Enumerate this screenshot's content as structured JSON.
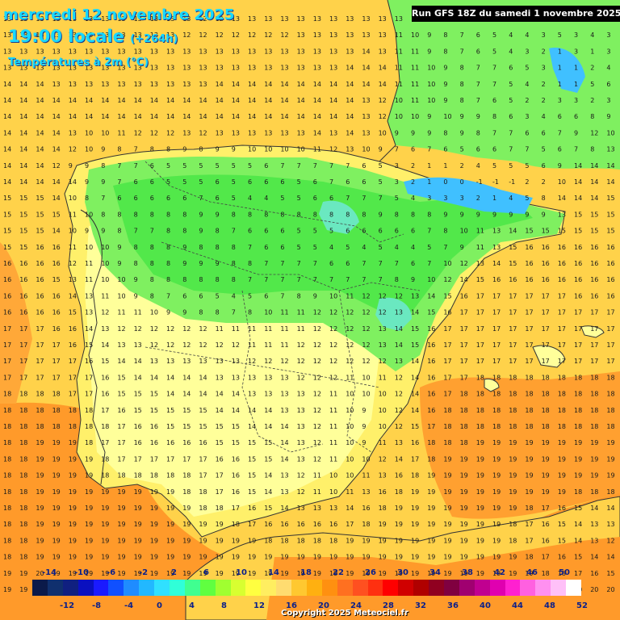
{
  "header": {
    "date_line": "mercredi 12 novembre 2025",
    "time_line": "19:00 locale",
    "lead_time": "(+264h)",
    "variable": "Températures à 2m (°C)",
    "run_info": "Run GFS 18Z du samedi 1 novembre 2025"
  },
  "legend": {
    "top_labels": [
      "-14",
      "-10",
      "-6",
      "-2",
      "2",
      "6",
      "10",
      "14",
      "18",
      "22",
      "26",
      "30",
      "34",
      "38",
      "42",
      "46",
      "50"
    ],
    "bottom_labels": [
      "-12",
      "-8",
      "-4",
      "0",
      "4",
      "8",
      "12",
      "16",
      "20",
      "24",
      "28",
      "32",
      "36",
      "40",
      "44",
      "48",
      "52"
    ],
    "colors": [
      "#0b1a4a",
      "#10306e",
      "#102080",
      "#0a10c0",
      "#1a1aff",
      "#1050ff",
      "#1f8cff",
      "#22b8ff",
      "#30e0ff",
      "#30ffd8",
      "#40ff90",
      "#60ff40",
      "#a0ff30",
      "#d8ff30",
      "#ffff40",
      "#ffee60",
      "#ffdc70",
      "#ffc830",
      "#ffb010",
      "#ff9010",
      "#ff7020",
      "#ff5020",
      "#ff3010",
      "#ff0000",
      "#d00000",
      "#b00000",
      "#900020",
      "#800040",
      "#a00070",
      "#c00090",
      "#e000b0",
      "#ff20d0",
      "#ff60e0",
      "#ff90f0",
      "#ffc0f8",
      "#ffffff"
    ]
  },
  "copyright": "Copyright 2025 Meteociel.fr",
  "map": {
    "palette": {
      "sea": "#ffd24a",
      "warm": "#ff9a2a",
      "land_yellow": "#fff06a",
      "pale": "#ffff9a",
      "green": "#7ff060",
      "green_dark": "#52e84a",
      "cold": "#6ae8c0",
      "blue": "#40c0ff",
      "border": "#333333"
    }
  },
  "grid_values": [
    "13 13 13 13 13 13 13 13 13 13 13 13 12 12 13 13 13 13 13 13 13 13 13 13 13 13 13 13 13 13 13 13 13 13 13 13 13 13",
    "13 13 13 13 13 13 13 13 13 13 13 12 12 12 12 12 12 12 13 13 13 13 13 13 11 10 9 8 7 6 5 4 4 3 5 3 4 3",
    "13 13 13 13 13 13 13 13 13 13 13 13 13 13 13 13 13 13 13 13 13 13 14 13 11 11 9 8 7 6 5 4 3 2 1 3 1 3",
    "13 13 13 13 13 13 13 13 13 13 13 13 13 13 13 13 13 13 13 13 13 14 14 14 11 11 10 9 8 7 7 6 5 3 1 1 2 4",
    "14 14 14 13 13 13 13 13 13 13 13 13 13 14 14 14 14 14 14 14 14 14 14 14 11 11 10 9 8 7 7 5 4 2 1 1 5 6",
    "14 14 14 14 14 14 14 14 14 14 14 14 14 14 14 14 14 14 14 14 14 14 13 12 10 11 10 9 8 7 6 5 2 2 3 3 2 3",
    "14 14 14 14 14 14 14 14 14 14 14 14 14 14 14 14 14 14 14 14 14 14 13 12 10 10 9 10 9 9 8 6 3 4 6 6 8 9",
    "14 14 14 14 13 10 10 11 12 12 12 13 12 13 13 13 13 13 13 14 13 14 13 10 9 9 9 8 9 8 7 7 6 6 7 9 12 10",
    "14 14 14 14 12 10 9 8 7 8 8 9 8 9 9 10 10 10 10 11 12 13 10 9 7 6 7 6 5 6 6 7 7 5 6 7 8 13",
    "14 14 14 12 9 9 8 7 7 6 5 5 5 5 5 5 6 7 7 7 7 7 6 5 3 2 1 1 2 4 5 5 5 6 9 14 14 14",
    "14 14 14 14 14 9 9 7 6 6 5 5 5 6 5 6 6 6 5 6 7 6 6 5 3 2 1 0 0 -1 -1 -1 2 2 10 14 14 14",
    "15 15 15 14 10 8 7 6 6 6 6 6 7 6 5 4 4 5 5 6 6 7 7 7 5 4 3 3 3 2 1 4 5 8 14 14 14 15",
    "15 15 15 15 11 10 8 8 8 8 8 8 9 9 8 8 8 8 8 8 8 8 8 9 8 8 8 9 9 9 9 9 9 9 13 15 15 15",
    "15 15 15 14 10 9 9 8 7 7 8 8 9 8 7 6 6 6 5 5 5 6 6 6 6 6 7 8 10 11 13 14 15 15 15 15 15 15",
    "15 15 16 16 11 10 10 9 8 8 8 9 8 8 8 7 6 6 5 5 4 5 4 5 4 4 5 7 9 11 13 15 16 16 16 16 16 16",
    "16 16 16 16 12 11 10 9 8 8 8 9 9 9 8 8 7 7 7 7 6 6 7 7 7 6 7 10 12 13 14 15 16 16 16 16 16 16",
    "16 16 16 15 13 11 10 10 9 8 8 8 8 8 8 7 7 7 7 7 7 7 7 7 8 9 10 12 14 15 16 16 16 16 16 16 16 16",
    "16 16 16 16 14 13 11 10 9 8 7 6 6 5 4 5 6 7 8 9 10 11 12 12 12 13 14 15 16 17 17 17 17 17 17 16 16 16",
    "16 16 16 16 15 13 12 11 11 10 9 9 8 8 7 8 10 11 11 12 12 12 12 12 13 14 15 16 17 17 17 17 17 17 17 17 17 17",
    "17 17 17 16 16 14 13 12 12 12 12 12 12 11 11 11 11 11 11 12 12 12 12 13 14 15 16 17 17 17 17 17 17 17 17 17 17 17",
    "17 17 17 17 16 15 14 13 13 12 12 12 12 12 12 11 11 11 12 12 12 12 12 13 14 15 16 17 17 17 17 17 17 17 17 17 17 17",
    "17 17 17 17 17 16 15 14 14 13 13 13 13 13 13 12 12 12 12 12 12 12 12 12 13 14 16 17 17 17 17 17 17 17 17 17 17 17",
    "17 17 17 17 17 17 16 15 14 14 14 14 14 13 13 13 13 13 12 12 12 11 10 11 12 14 16 17 17 18 18 18 18 18 18 18 18 18",
    "18 18 18 18 17 17 16 15 15 15 14 14 14 14 14 13 13 13 13 12 11 10 10 10 12 14 16 17 18 18 18 18 18 18 18 18 18 18",
    "18 18 18 18 18 18 17 16 15 15 15 15 15 14 14 14 14 13 13 12 11 10 9 10 12 14 16 18 18 18 18 18 18 18 18 18 18 18",
    "18 18 18 18 18 18 18 17 16 16 15 15 15 15 15 14 14 14 13 12 11 10 9 10 12 15 17 18 18 18 18 18 18 18 18 18 18 18",
    "18 18 19 19 19 18 17 17 16 16 16 16 16 15 15 15 15 14 13 12 11 10 9 11 13 16 18 18 18 19 19 19 19 19 19 19 19 19",
    "18 18 19 19 19 19 18 17 17 17 17 17 17 16 16 15 15 14 13 12 11 10 10 12 14 17 18 19 19 19 19 19 19 19 19 19 19 19",
    "18 18 19 19 19 19 18 18 18 18 18 18 17 17 16 15 14 13 12 11 10 10 11 13 16 18 19 19 19 19 19 19 19 19 19 19 19 19",
    "18 18 19 19 19 19 19 19 19 19 19 18 18 17 16 15 14 13 12 11 10 11 13 16 18 19 19 19 19 19 19 19 19 19 19 18 18 18",
    "18 18 19 19 19 19 19 19 19 19 19 19 18 18 17 16 15 14 13 13 13 14 16 18 19 19 19 19 19 19 19 19 18 17 16 15 14 14",
    "18 18 19 19 19 19 19 19 19 19 19 19 19 19 18 17 16 16 16 16 16 17 18 19 19 19 19 19 19 19 19 18 17 16 15 14 13 13",
    "18 18 19 19 19 19 19 19 19 19 19 19 19 19 19 19 18 18 18 18 18 19 19 19 19 19 19 19 19 19 19 18 17 16 15 14 13 12",
    "18 18 19 19 19 19 19 19 19 19 19 19 19 19 19 19 19 19 19 19 19 19 19 19 19 19 19 19 19 19 19 19 18 17 16 15 14 14",
    "19 19 20 19 19 19 19 19 19 19 19 19 19 19 19 19 19 19 19 19 19 19 19 19 19 19 19 19 19 19 19 19 19 18 18 17 16 15",
    "19 19 20 20 20 20 20 20 20 20 20 20 20 20 20 20 20 20 20 20 20 20 20 20 20 20 20 20 20 20 20 20 20 20 20 20 20 20"
  ]
}
